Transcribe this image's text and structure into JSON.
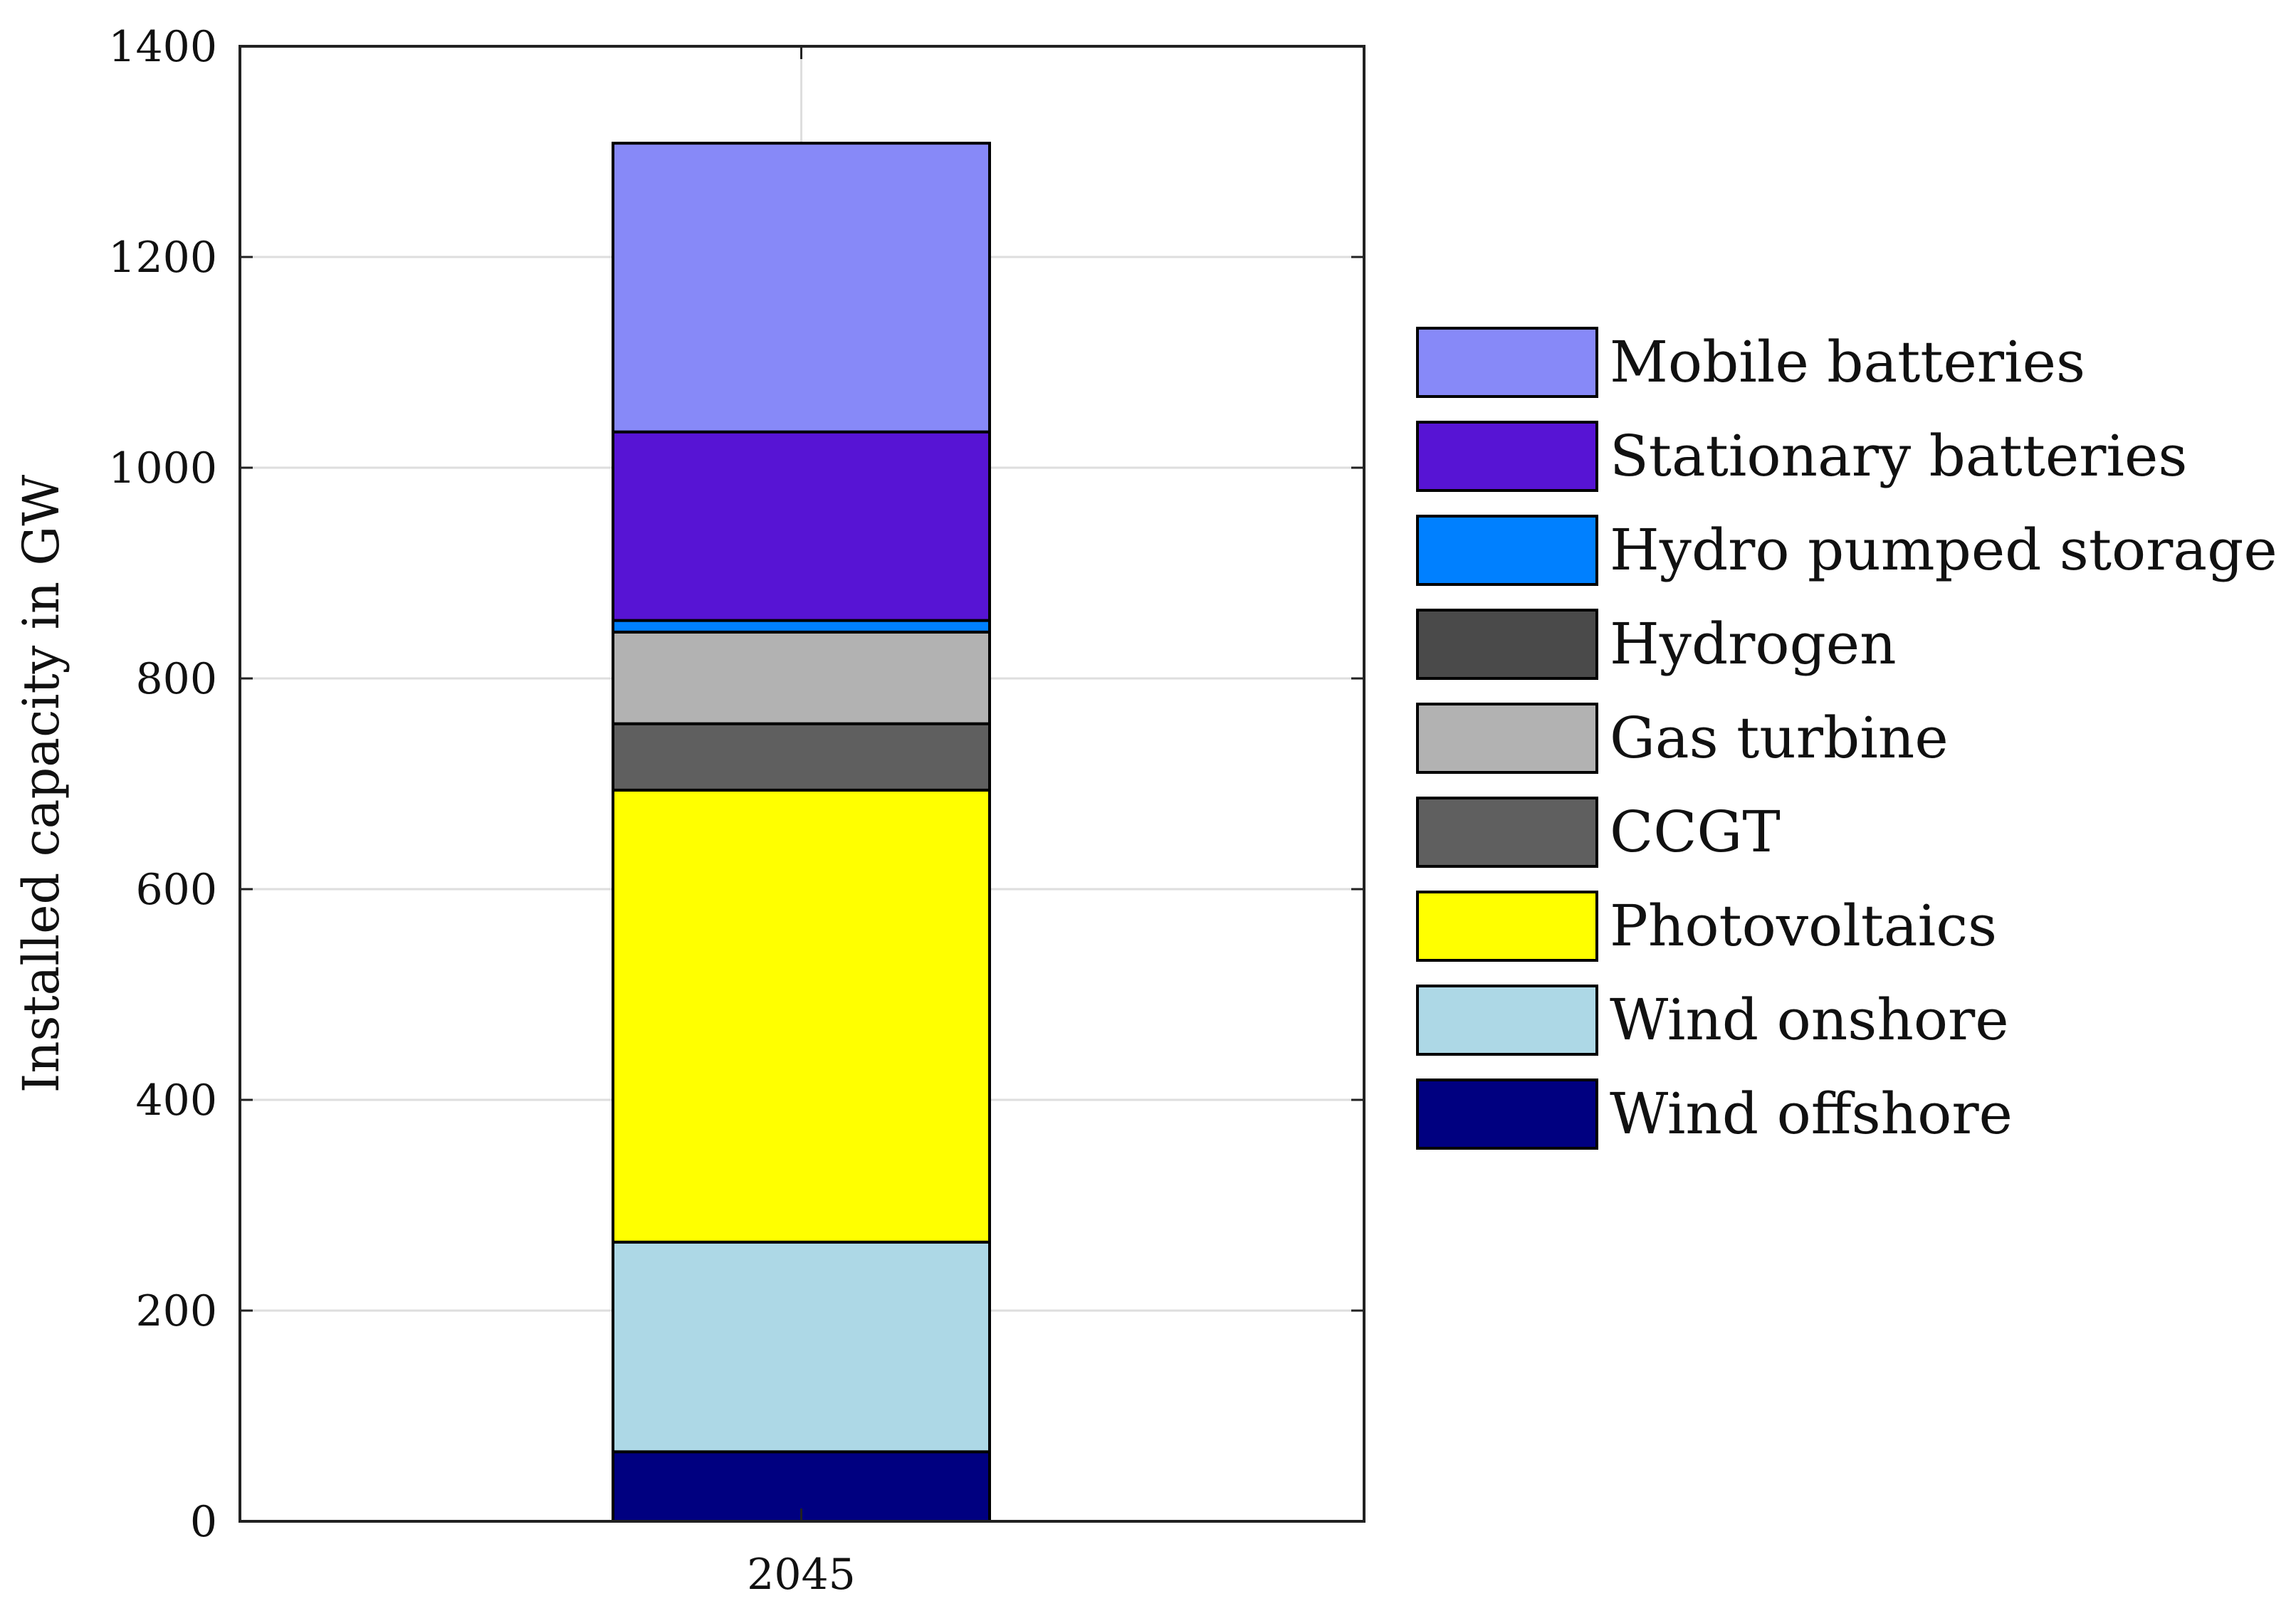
{
  "chart_data": {
    "type": "bar",
    "stacked": true,
    "categories": [
      "2045"
    ],
    "title": "",
    "xlabel": "",
    "ylabel": "Installed capacity in GW",
    "ylim": [
      0,
      1400
    ],
    "yticks": [
      0,
      200,
      400,
      600,
      800,
      1000,
      1200,
      1400
    ],
    "grid": true,
    "legend_position": "right",
    "series": [
      {
        "name": "Wind offshore",
        "values": [
          66
        ],
        "color": "#000080"
      },
      {
        "name": "Wind onshore",
        "values": [
          199
        ],
        "color": "#ADD8E6"
      },
      {
        "name": "Photovoltaics",
        "values": [
          429
        ],
        "color": "#FFFF00"
      },
      {
        "name": "CCGT",
        "values": [
          63
        ],
        "color": "#5F5F5F"
      },
      {
        "name": "Gas turbine",
        "values": [
          87
        ],
        "color": "#B2B2B2"
      },
      {
        "name": "Hydrogen",
        "values": [
          0
        ],
        "color": "#4A4A4A"
      },
      {
        "name": "Hydro pumped storage",
        "values": [
          11
        ],
        "color": "#0080FF"
      },
      {
        "name": "Stationary batteries",
        "values": [
          179
        ],
        "color": "#5714D4"
      },
      {
        "name": "Mobile batteries",
        "values": [
          274
        ],
        "color": "#8789F8"
      }
    ],
    "legend_order": [
      "Mobile batteries",
      "Stationary batteries",
      "Hydro pumped storage",
      "Hydrogen",
      "Gas turbine",
      "CCGT",
      "Photovoltaics",
      "Wind onshore",
      "Wind offshore"
    ]
  }
}
